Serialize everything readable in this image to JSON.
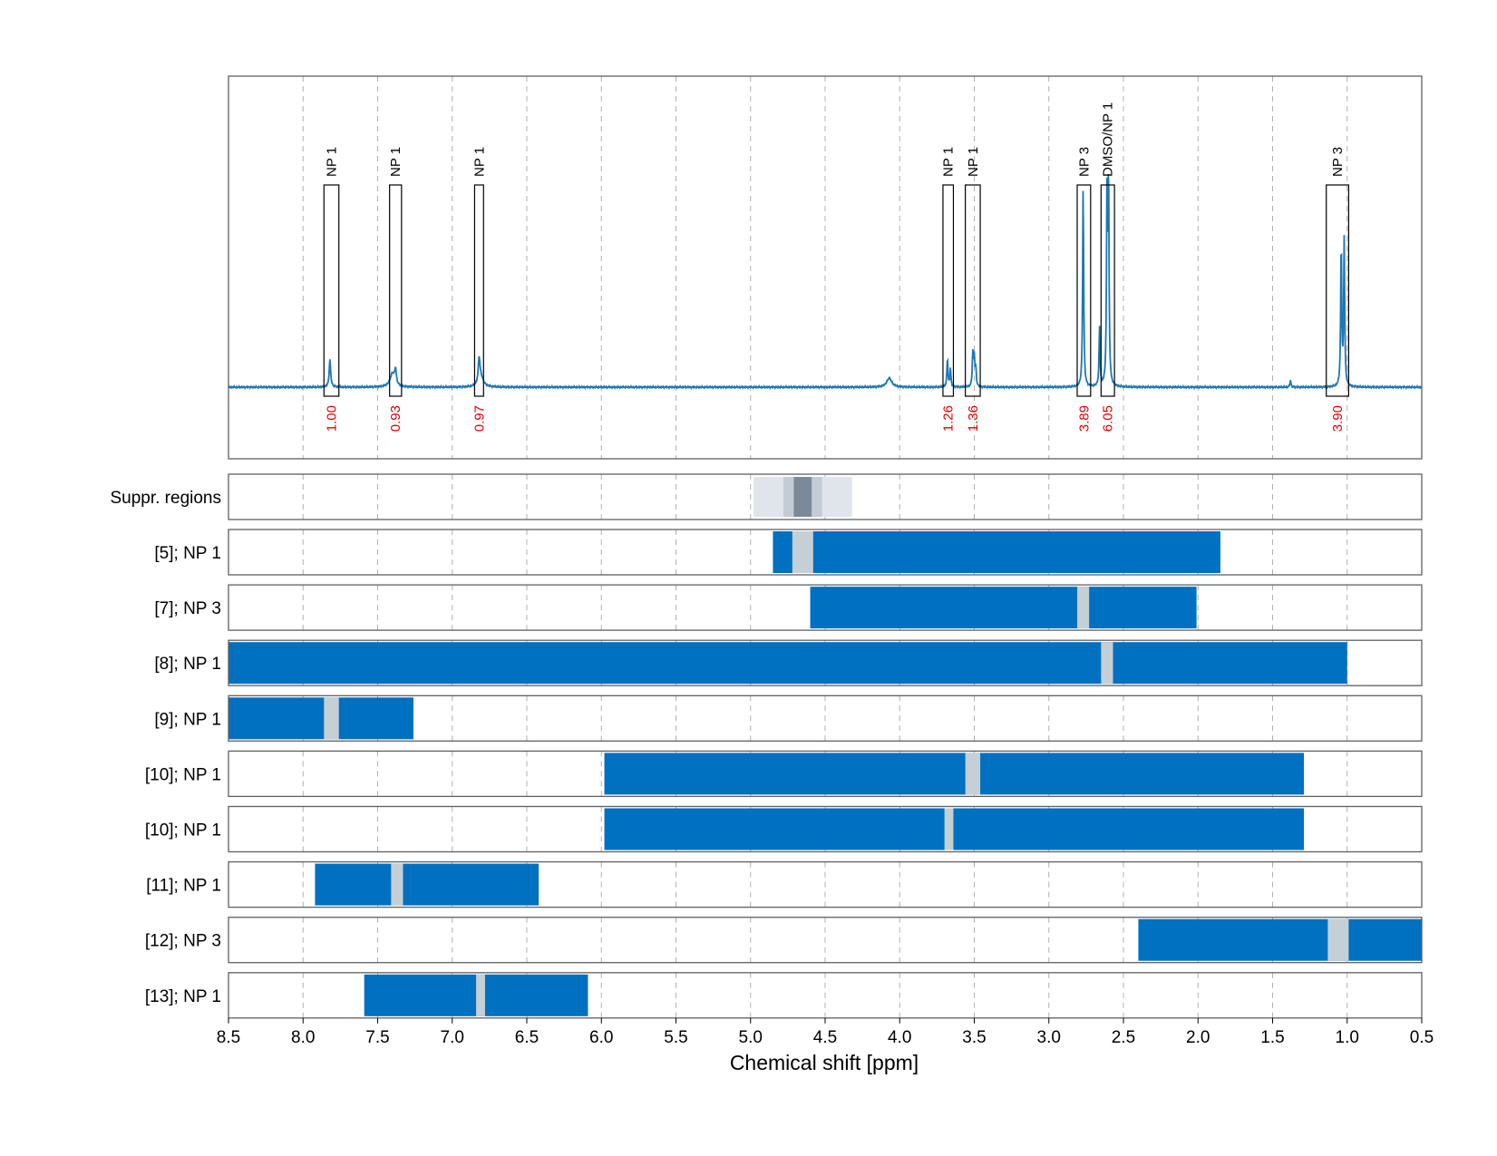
{
  "chart_data": {
    "type": "line",
    "xlabel": "Chemical shift [ppm]",
    "xlim": [
      8.5,
      0.5
    ],
    "x_direction": "descending",
    "x_ticks": [
      "8.5",
      "8.0",
      "7.5",
      "7.0",
      "6.5",
      "6.0",
      "5.5",
      "5.0",
      "4.5",
      "4.0",
      "3.5",
      "3.0",
      "2.5",
      "2.0",
      "1.5",
      "1.0",
      "0.5"
    ],
    "grid": "dashed vertical",
    "spectrum": {
      "color": "#1f77b4",
      "peaks": [
        {
          "x": 7.82,
          "height": 0.12,
          "width": 0.006
        },
        {
          "x": 7.4,
          "height": 0.06,
          "width": 0.02
        },
        {
          "x": 7.38,
          "height": 0.06,
          "width": 0.006
        },
        {
          "x": 6.82,
          "height": 0.1,
          "width": 0.006
        },
        {
          "x": 6.81,
          "height": 0.05,
          "width": 0.02
        },
        {
          "x": 4.07,
          "height": 0.04,
          "width": 0.02
        },
        {
          "x": 3.68,
          "height": 0.13,
          "width": 0.004
        },
        {
          "x": 3.66,
          "height": 0.08,
          "width": 0.004
        },
        {
          "x": 3.51,
          "height": 0.15,
          "width": 0.004
        },
        {
          "x": 3.5,
          "height": 0.13,
          "width": 0.004
        },
        {
          "x": 3.49,
          "height": 0.08,
          "width": 0.004
        },
        {
          "x": 2.77,
          "height": 0.9,
          "width": 0.004
        },
        {
          "x": 2.66,
          "height": 0.26,
          "width": 0.004
        },
        {
          "x": 2.61,
          "height": 0.84,
          "width": 0.004
        },
        {
          "x": 2.6,
          "height": 0.9,
          "width": 0.004
        },
        {
          "x": 1.38,
          "height": 0.03,
          "width": 0.004
        },
        {
          "x": 1.04,
          "height": 0.64,
          "width": 0.004
        },
        {
          "x": 1.02,
          "height": 0.65,
          "width": 0.004
        }
      ]
    },
    "peak_boxes": [
      {
        "label": "NP 1",
        "x_from": 7.86,
        "x_to": 7.76,
        "integral": "1.00"
      },
      {
        "label": "NP 1",
        "x_from": 7.42,
        "x_to": 7.34,
        "integral": "0.93"
      },
      {
        "label": "NP 1",
        "x_from": 6.85,
        "x_to": 6.79,
        "integral": "0.97"
      },
      {
        "label": "NP 1",
        "x_from": 3.71,
        "x_to": 3.64,
        "integral": "1.26"
      },
      {
        "label": "NP 1",
        "x_from": 3.56,
        "x_to": 3.46,
        "integral": "1.36"
      },
      {
        "label": "NP 3",
        "x_from": 2.81,
        "x_to": 2.72,
        "integral": "3.89"
      },
      {
        "label": "DMSO/NP 1",
        "x_from": 2.65,
        "x_to": 2.56,
        "integral": "6.05"
      },
      {
        "label": "NP 3",
        "x_from": 1.14,
        "x_to": 0.99,
        "integral": "3.90"
      }
    ],
    "suppression_region": {
      "label": "Suppr. regions",
      "bands": [
        {
          "x_from": 4.98,
          "x_to": 4.32,
          "shade": "#dfe5eb"
        },
        {
          "x_from": 4.78,
          "x_to": 4.52,
          "shade": "#c3ccd5"
        },
        {
          "x_from": 4.71,
          "x_to": 4.59,
          "shade": "#7b8a99"
        }
      ]
    },
    "bar_color": "#0070c0",
    "marker_color": "#c5cfd6",
    "rows": [
      {
        "label": "[5]; NP 1",
        "x_from": 4.85,
        "x_to": 1.85,
        "marker_from": 4.72,
        "marker_to": 4.58
      },
      {
        "label": "[7]; NP 3",
        "x_from": 4.6,
        "x_to": 2.01,
        "marker_from": 2.81,
        "marker_to": 2.73
      },
      {
        "label": "[8]; NP 1",
        "x_from": 8.5,
        "x_to": 1.0,
        "marker_from": 2.65,
        "marker_to": 2.57
      },
      {
        "label": "[9]; NP 1",
        "x_from": 8.5,
        "x_to": 7.26,
        "marker_from": 7.86,
        "marker_to": 7.76
      },
      {
        "label": "[10]; NP 1",
        "x_from": 5.98,
        "x_to": 1.29,
        "marker_from": 3.56,
        "marker_to": 3.46
      },
      {
        "label": "[10]; NP 1",
        "x_from": 5.98,
        "x_to": 1.29,
        "marker_from": 3.7,
        "marker_to": 3.64
      },
      {
        "label": "[11]; NP 1",
        "x_from": 7.92,
        "x_to": 6.42,
        "marker_from": 7.41,
        "marker_to": 7.33
      },
      {
        "label": "[12]; NP 3",
        "x_from": 2.4,
        "x_to": 0.5,
        "marker_from": 1.13,
        "marker_to": 0.99
      },
      {
        "label": "[13]; NP 1",
        "x_from": 7.59,
        "x_to": 6.09,
        "marker_from": 6.84,
        "marker_to": 6.78
      }
    ]
  }
}
